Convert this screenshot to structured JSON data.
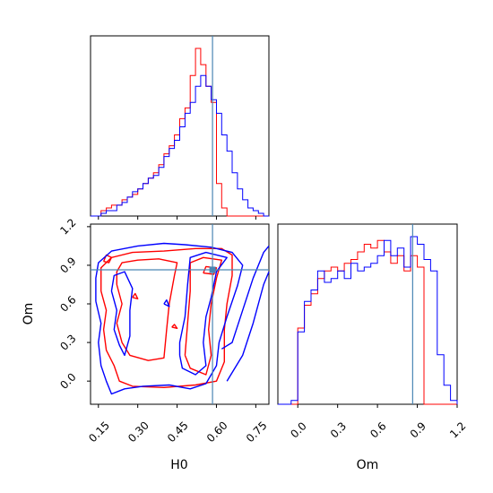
{
  "chart_data": {
    "type": "corner",
    "parameters": [
      "H0",
      "Om"
    ],
    "truths": {
      "H0": 0.585,
      "Om": 0.865
    },
    "truth_color": "#4a86b4",
    "series": [
      {
        "color": "#ff0000"
      },
      {
        "color": "#0000ff"
      }
    ],
    "panels": {
      "hist_H0": {
        "xlim": [
          0.12,
          0.8
        ],
        "bins": [
          0.12,
          0.14,
          0.16,
          0.18,
          0.2,
          0.22,
          0.24,
          0.26,
          0.28,
          0.3,
          0.32,
          0.34,
          0.36,
          0.38,
          0.4,
          0.42,
          0.44,
          0.46,
          0.48,
          0.5,
          0.52,
          0.54,
          0.56,
          0.58,
          0.6,
          0.62,
          0.64,
          0.66,
          0.68,
          0.7,
          0.72,
          0.74,
          0.76,
          0.78,
          0.8
        ],
        "counts": [
          [
            0,
            0,
            2,
            3,
            4,
            4,
            6,
            7,
            8,
            10,
            12,
            14,
            16,
            19,
            23,
            26,
            30,
            36,
            40,
            52,
            62,
            56,
            48,
            42,
            12,
            3,
            0,
            0,
            0,
            0,
            0,
            0,
            0,
            0
          ],
          [
            0,
            0,
            1,
            2,
            2,
            4,
            5,
            7,
            9,
            10,
            12,
            14,
            15,
            18,
            22,
            25,
            28,
            33,
            38,
            42,
            48,
            52,
            48,
            43,
            38,
            30,
            24,
            16,
            10,
            6,
            3,
            2,
            1,
            0
          ]
        ]
      },
      "hist_Om": {
        "xlim": [
          -0.15,
          1.2
        ],
        "bins": [
          -0.15,
          -0.1,
          -0.05,
          0.0,
          0.05,
          0.1,
          0.15,
          0.2,
          0.25,
          0.3,
          0.35,
          0.4,
          0.45,
          0.5,
          0.55,
          0.6,
          0.65,
          0.7,
          0.75,
          0.8,
          0.85,
          0.9,
          0.95,
          1.0,
          1.05,
          1.1,
          1.15,
          1.2
        ],
        "counts": [
          [
            0,
            0,
            0,
            40,
            52,
            58,
            66,
            70,
            72,
            70,
            74,
            76,
            80,
            84,
            82,
            86,
            80,
            74,
            78,
            70,
            78,
            72,
            0,
            0,
            0,
            0,
            0
          ],
          [
            0,
            0,
            2,
            38,
            54,
            60,
            70,
            64,
            66,
            70,
            66,
            74,
            70,
            72,
            74,
            78,
            86,
            78,
            82,
            72,
            88,
            84,
            76,
            70,
            26,
            10,
            2
          ]
        ]
      },
      "contour_H0_Om": {
        "xlim": [
          0.12,
          0.8
        ],
        "ylim": [
          -0.18,
          1.22
        ],
        "contours": [
          [
            [
              [
                0.16,
                0.7
              ],
              [
                0.18,
                0.55
              ],
              [
                0.17,
                0.4
              ],
              [
                0.18,
                0.24
              ],
              [
                0.21,
                0.12
              ],
              [
                0.23,
                0.0
              ],
              [
                0.28,
                -0.04
              ],
              [
                0.4,
                -0.05
              ],
              [
                0.52,
                -0.03
              ],
              [
                0.6,
                0.0
              ],
              [
                0.63,
                0.15
              ],
              [
                0.63,
                0.4
              ],
              [
                0.64,
                0.6
              ],
              [
                0.66,
                0.82
              ],
              [
                0.66,
                0.98
              ],
              [
                0.62,
                1.03
              ],
              [
                0.52,
                1.03
              ],
              [
                0.4,
                1.01
              ],
              [
                0.28,
                1.0
              ],
              [
                0.2,
                0.96
              ],
              [
                0.16,
                0.88
              ],
              [
                0.16,
                0.7
              ]
            ],
            [
              [
                0.22,
                0.75
              ],
              [
                0.24,
                0.6
              ],
              [
                0.22,
                0.45
              ],
              [
                0.24,
                0.3
              ],
              [
                0.27,
                0.2
              ],
              [
                0.34,
                0.16
              ],
              [
                0.4,
                0.18
              ],
              [
                0.41,
                0.4
              ],
              [
                0.42,
                0.6
              ],
              [
                0.44,
                0.82
              ],
              [
                0.45,
                0.92
              ],
              [
                0.38,
                0.95
              ],
              [
                0.3,
                0.94
              ],
              [
                0.24,
                0.92
              ],
              [
                0.22,
                0.85
              ],
              [
                0.22,
                0.75
              ]
            ],
            [
              [
                0.48,
                0.2
              ],
              [
                0.5,
                0.1
              ],
              [
                0.56,
                0.05
              ],
              [
                0.58,
                0.2
              ],
              [
                0.57,
                0.4
              ],
              [
                0.58,
                0.6
              ],
              [
                0.6,
                0.8
              ],
              [
                0.62,
                0.94
              ],
              [
                0.55,
                0.96
              ],
              [
                0.5,
                0.92
              ],
              [
                0.5,
                0.7
              ],
              [
                0.49,
                0.45
              ],
              [
                0.48,
                0.2
              ]
            ],
            [
              [
                0.55,
                0.84
              ],
              [
                0.59,
                0.83
              ],
              [
                0.6,
                0.88
              ],
              [
                0.56,
                0.89
              ],
              [
                0.55,
                0.84
              ]
            ],
            [
              [
                0.17,
                0.93
              ],
              [
                0.19,
                0.92
              ],
              [
                0.2,
                0.96
              ],
              [
                0.18,
                0.98
              ],
              [
                0.17,
                0.93
              ]
            ],
            [
              [
                0.28,
                0.65
              ],
              [
                0.3,
                0.64
              ],
              [
                0.29,
                0.68
              ],
              [
                0.28,
                0.65
              ]
            ],
            [
              [
                0.43,
                0.42
              ],
              [
                0.45,
                0.41
              ],
              [
                0.44,
                0.44
              ],
              [
                0.43,
                0.42
              ]
            ]
          ],
          [
            [
              [
                0.14,
                0.62
              ],
              [
                0.16,
                0.45
              ],
              [
                0.15,
                0.3
              ],
              [
                0.16,
                0.12
              ],
              [
                0.18,
                0.0
              ],
              [
                0.2,
                -0.1
              ],
              [
                0.25,
                -0.06
              ],
              [
                0.32,
                -0.04
              ],
              [
                0.42,
                -0.03
              ],
              [
                0.5,
                -0.06
              ],
              [
                0.56,
                -0.02
              ],
              [
                0.6,
                0.12
              ],
              [
                0.61,
                0.3
              ],
              [
                0.64,
                0.5
              ],
              [
                0.68,
                0.74
              ],
              [
                0.7,
                0.9
              ],
              [
                0.66,
                1.0
              ],
              [
                0.58,
                1.04
              ],
              [
                0.48,
                1.06
              ],
              [
                0.4,
                1.07
              ],
              [
                0.3,
                1.05
              ],
              [
                0.2,
                1.01
              ],
              [
                0.15,
                0.92
              ],
              [
                0.14,
                0.8
              ],
              [
                0.14,
                0.62
              ]
            ],
            [
              [
                0.2,
                0.7
              ],
              [
                0.22,
                0.55
              ],
              [
                0.21,
                0.4
              ],
              [
                0.23,
                0.28
              ],
              [
                0.25,
                0.2
              ],
              [
                0.27,
                0.35
              ],
              [
                0.27,
                0.55
              ],
              [
                0.28,
                0.72
              ],
              [
                0.25,
                0.85
              ],
              [
                0.21,
                0.82
              ],
              [
                0.2,
                0.7
              ]
            ],
            [
              [
                0.46,
                0.2
              ],
              [
                0.47,
                0.1
              ],
              [
                0.52,
                0.05
              ],
              [
                0.56,
                0.12
              ],
              [
                0.55,
                0.3
              ],
              [
                0.56,
                0.5
              ],
              [
                0.58,
                0.65
              ],
              [
                0.6,
                0.85
              ],
              [
                0.64,
                0.96
              ],
              [
                0.56,
                1.0
              ],
              [
                0.5,
                0.96
              ],
              [
                0.49,
                0.75
              ],
              [
                0.48,
                0.5
              ],
              [
                0.46,
                0.3
              ],
              [
                0.46,
                0.2
              ]
            ],
            [
              [
                0.62,
                0.25
              ],
              [
                0.66,
                0.3
              ],
              [
                0.7,
                0.55
              ],
              [
                0.74,
                0.8
              ],
              [
                0.78,
                1.0
              ],
              [
                0.8,
                1.05
              ]
            ],
            [
              [
                0.64,
                0.0
              ],
              [
                0.7,
                0.2
              ],
              [
                0.74,
                0.45
              ],
              [
                0.78,
                0.75
              ],
              [
                0.8,
                0.85
              ]
            ],
            [
              [
                0.4,
                0.6
              ],
              [
                0.42,
                0.58
              ],
              [
                0.41,
                0.63
              ],
              [
                0.4,
                0.6
              ]
            ]
          ]
        ]
      }
    },
    "h0_ticks": [
      "0.15",
      "0.30",
      "0.45",
      "0.60",
      "0.75"
    ],
    "om_ticks": [
      "0.0",
      "0.3",
      "0.6",
      "0.9",
      "1.2"
    ],
    "xlabel_left": "H0",
    "xlabel_right": "Om",
    "ylabel": "Om"
  }
}
